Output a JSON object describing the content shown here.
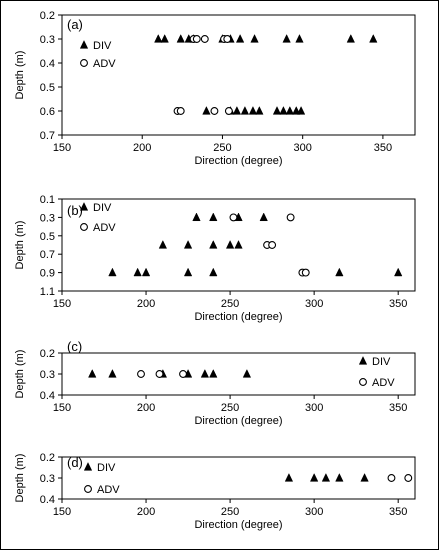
{
  "chart_data": [
    {
      "type": "scatter",
      "panel_label": "(a)",
      "xlabel": "Direction (degree)",
      "ylabel": "Depth (m)",
      "xlim": [
        150,
        370
      ],
      "ylim": [
        0.2,
        0.7
      ],
      "y_inverted": true,
      "xticks": [
        "150",
        "200",
        "250",
        "300",
        "350"
      ],
      "yticks": [
        "0.2",
        "0.3",
        "0.4",
        "0.5",
        "0.6",
        "0.7"
      ],
      "legend_placement": "top-left",
      "grid": false,
      "series": [
        {
          "name": "DIV",
          "marker": "filled-triangle",
          "points": [
            [
              210,
              0.3
            ],
            [
              214,
              0.3
            ],
            [
              224,
              0.3
            ],
            [
              229,
              0.3
            ],
            [
              232,
              0.3
            ],
            [
              250,
              0.3
            ],
            [
              255,
              0.3
            ],
            [
              261,
              0.3
            ],
            [
              270,
              0.3
            ],
            [
              290,
              0.3
            ],
            [
              298,
              0.3
            ],
            [
              330,
              0.3
            ],
            [
              344,
              0.3
            ],
            [
              240,
              0.6
            ],
            [
              255,
              0.6
            ],
            [
              259,
              0.6
            ],
            [
              264,
              0.6
            ],
            [
              269,
              0.6
            ],
            [
              273,
              0.6
            ],
            [
              284,
              0.6
            ],
            [
              288,
              0.6
            ],
            [
              292,
              0.6
            ],
            [
              296,
              0.6
            ],
            [
              299,
              0.6
            ]
          ]
        },
        {
          "name": "ADV",
          "marker": "open-circle",
          "points": [
            [
              232,
              0.3
            ],
            [
              234,
              0.3
            ],
            [
              239,
              0.3
            ],
            [
              251,
              0.3
            ],
            [
              253,
              0.3
            ],
            [
              222,
              0.6
            ],
            [
              224,
              0.6
            ],
            [
              245,
              0.6
            ],
            [
              254,
              0.6
            ]
          ]
        }
      ]
    },
    {
      "type": "scatter",
      "panel_label": "(b)",
      "xlabel": "Direction (degree)",
      "ylabel": "Depth (m)",
      "xlim": [
        150,
        360
      ],
      "ylim": [
        0.1,
        1.1
      ],
      "y_inverted": true,
      "xticks": [
        "150",
        "200",
        "250",
        "300",
        "350"
      ],
      "yticks": [
        "0.1",
        "0.3",
        "0.5",
        "0.7",
        "0.9",
        "1.1"
      ],
      "legend_placement": "top-left",
      "grid": false,
      "series": [
        {
          "name": "DIV",
          "marker": "filled-triangle",
          "points": [
            [
              230,
              0.3
            ],
            [
              240,
              0.3
            ],
            [
              255,
              0.3
            ],
            [
              270,
              0.3
            ],
            [
              210,
              0.6
            ],
            [
              225,
              0.6
            ],
            [
              240,
              0.6
            ],
            [
              250,
              0.6
            ],
            [
              255,
              0.6
            ],
            [
              180,
              0.9
            ],
            [
              195,
              0.9
            ],
            [
              200,
              0.9
            ],
            [
              225,
              0.9
            ],
            [
              240,
              0.9
            ],
            [
              315,
              0.9
            ],
            [
              350,
              0.9
            ]
          ]
        },
        {
          "name": "ADV",
          "marker": "open-circle",
          "points": [
            [
              252,
              0.3
            ],
            [
              286,
              0.3
            ],
            [
              272,
              0.6
            ],
            [
              275,
              0.6
            ],
            [
              293,
              0.9
            ],
            [
              295,
              0.9
            ]
          ]
        }
      ]
    },
    {
      "type": "scatter",
      "panel_label": "(c)",
      "xlabel": "Direction (degree)",
      "ylabel": "Depth (m)",
      "xlim": [
        150,
        360
      ],
      "ylim": [
        0.2,
        0.4
      ],
      "y_inverted": true,
      "xticks": [
        "150",
        "200",
        "250",
        "300",
        "350"
      ],
      "yticks": [
        "0.2",
        "0.3",
        "0.4"
      ],
      "legend_placement": "right",
      "grid": false,
      "series": [
        {
          "name": "DIV",
          "marker": "filled-triangle",
          "points": [
            [
              168,
              0.3
            ],
            [
              180,
              0.3
            ],
            [
              210,
              0.3
            ],
            [
              225,
              0.3
            ],
            [
              235,
              0.3
            ],
            [
              240,
              0.3
            ],
            [
              260,
              0.3
            ]
          ]
        },
        {
          "name": "ADV",
          "marker": "open-circle",
          "points": [
            [
              197,
              0.3
            ],
            [
              208,
              0.3
            ],
            [
              222,
              0.3
            ]
          ]
        }
      ]
    },
    {
      "type": "scatter",
      "panel_label": "(d)",
      "xlabel": "Direction (degree)",
      "ylabel": "Depth (m)",
      "xlim": [
        150,
        360
      ],
      "ylim": [
        0.2,
        0.4
      ],
      "y_inverted": true,
      "xticks": [
        "150",
        "200",
        "250",
        "300",
        "350"
      ],
      "yticks": [
        "0.2",
        "0.3",
        "0.4"
      ],
      "legend_placement": "top-left",
      "grid": false,
      "series": [
        {
          "name": "DIV",
          "marker": "filled-triangle",
          "points": [
            [
              285,
              0.3
            ],
            [
              300,
              0.3
            ],
            [
              307,
              0.3
            ],
            [
              315,
              0.3
            ],
            [
              330,
              0.3
            ]
          ]
        },
        {
          "name": "ADV",
          "marker": "open-circle",
          "points": [
            [
              346,
              0.3
            ],
            [
              356,
              0.3
            ]
          ]
        }
      ]
    }
  ]
}
